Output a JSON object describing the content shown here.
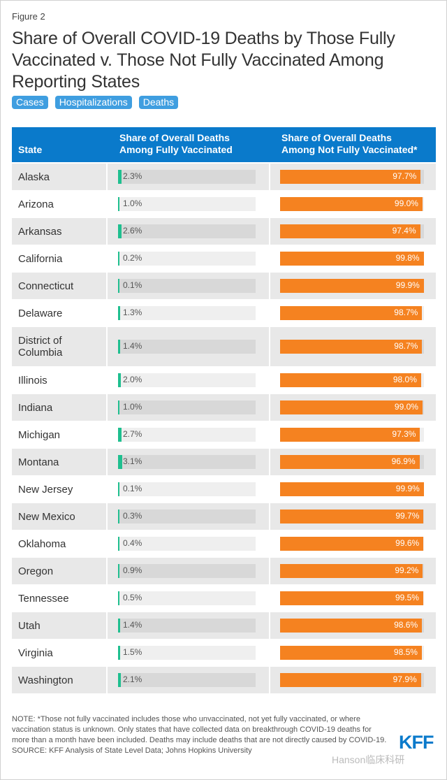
{
  "figure_label": "Figure 2",
  "title": "Share of Overall COVID-19 Deaths by Those Fully Vaccinated v. Those Not Fully Vaccinated Among Reporting States",
  "buttons": [
    "Cases",
    "Hospitalizations",
    "Deaths"
  ],
  "colors": {
    "header": "#0a7acb",
    "vaccinated": "#1fbf8f",
    "not_vaccinated": "#f58220",
    "button": "#3f9ee0"
  },
  "chart_data": {
    "type": "table",
    "title": "Share of Overall COVID-19 Deaths by Those Fully Vaccinated v. Those Not Fully Vaccinated Among Reporting States",
    "columns": [
      "State",
      "Share of Overall Deaths Among Fully Vaccinated",
      "Share of Overall Deaths Among Not Fully Vaccinated*"
    ],
    "rows": [
      {
        "state": "Alaska",
        "vaccinated": 2.3,
        "not_vaccinated": 97.7
      },
      {
        "state": "Arizona",
        "vaccinated": 1.0,
        "not_vaccinated": 99.0
      },
      {
        "state": "Arkansas",
        "vaccinated": 2.6,
        "not_vaccinated": 97.4
      },
      {
        "state": "California",
        "vaccinated": 0.2,
        "not_vaccinated": 99.8
      },
      {
        "state": "Connecticut",
        "vaccinated": 0.1,
        "not_vaccinated": 99.9
      },
      {
        "state": "Delaware",
        "vaccinated": 1.3,
        "not_vaccinated": 98.7
      },
      {
        "state": "District of Columbia",
        "vaccinated": 1.4,
        "not_vaccinated": 98.7
      },
      {
        "state": "Illinois",
        "vaccinated": 2.0,
        "not_vaccinated": 98.0
      },
      {
        "state": "Indiana",
        "vaccinated": 1.0,
        "not_vaccinated": 99.0
      },
      {
        "state": "Michigan",
        "vaccinated": 2.7,
        "not_vaccinated": 97.3
      },
      {
        "state": "Montana",
        "vaccinated": 3.1,
        "not_vaccinated": 96.9
      },
      {
        "state": "New Jersey",
        "vaccinated": 0.1,
        "not_vaccinated": 99.9
      },
      {
        "state": "New Mexico",
        "vaccinated": 0.3,
        "not_vaccinated": 99.7
      },
      {
        "state": "Oklahoma",
        "vaccinated": 0.4,
        "not_vaccinated": 99.6
      },
      {
        "state": "Oregon",
        "vaccinated": 0.9,
        "not_vaccinated": 99.2
      },
      {
        "state": "Tennessee",
        "vaccinated": 0.5,
        "not_vaccinated": 99.5
      },
      {
        "state": "Utah",
        "vaccinated": 1.4,
        "not_vaccinated": 98.6
      },
      {
        "state": "Virginia",
        "vaccinated": 1.5,
        "not_vaccinated": 98.5
      },
      {
        "state": "Washington",
        "vaccinated": 2.1,
        "not_vaccinated": 97.9
      }
    ]
  },
  "headers": {
    "state": "State",
    "col2_line1": "Share of Overall Deaths",
    "col2_line2": "Among Fully Vaccinated",
    "col3_line1": "Share of Overall Deaths",
    "col3_line2": "Among Not Fully Vaccinated*"
  },
  "note": "NOTE: *Those not fully vaccinated includes those who unvaccinated, not yet fully vaccinated, or where vaccination status is unknown. Only states that have collected data on breakthrough COVID-19 deaths for more than a month have been included. Deaths may include deaths that are not directly caused by COVID-19.",
  "source": "SOURCE: KFF Analysis of State Level Data; Johns Hopkins University",
  "logo": "KFF",
  "watermark": "Hanson临床科研"
}
